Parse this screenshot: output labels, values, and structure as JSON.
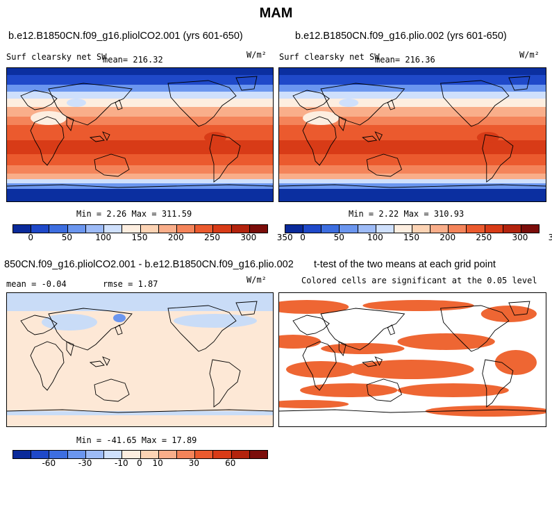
{
  "title": "MAM",
  "panels": {
    "p1": {
      "case": "b.e12.B1850CN.f09_g16.pliolCO2.001 (yrs 601-650)",
      "variable": "Surf clearsky net SW",
      "mean": "mean= 216.32",
      "units": "W/m²",
      "minmax": "Min =   2.26 Max = 311.59"
    },
    "p2": {
      "case": "b.e12.B1850CN.f09_g16.plio.002 (yrs 601-650)",
      "variable": "Surf clearsky net SW",
      "mean": "mean= 216.36",
      "units": "W/m²",
      "minmax": "Min =   2.22 Max = 310.93"
    },
    "p3": {
      "case": "850CN.f09_g16.pliolCO2.001 - b.e12.B1850CN.f09_g16.plio.002",
      "mean": "mean =  -0.04",
      "rmse": "rmse =   1.87",
      "units": "W/m²",
      "minmax": "Min = -41.65 Max =  17.89"
    },
    "p4": {
      "title": "t-test of the two means at each grid point",
      "subtitle": "Colored cells are significant at the 0.05 level"
    }
  },
  "colorbars": {
    "abs": {
      "colors": [
        "#0a2a9a",
        "#1f49c9",
        "#3d6ee0",
        "#6b96ef",
        "#9dbbf7",
        "#cfe0fc",
        "#fdeee0",
        "#fcd3b4",
        "#f9ae8a",
        "#f4845a",
        "#eb5a2e",
        "#d83b17",
        "#b3230d",
        "#7b0d0a"
      ],
      "tick_labels": [
        "0",
        "50",
        "100",
        "150",
        "200",
        "250",
        "300",
        "350"
      ]
    },
    "diff": {
      "colors": [
        "#0a2a9a",
        "#1f49c9",
        "#3d6ee0",
        "#6b96ef",
        "#9dbbf7",
        "#cfe0fc",
        "#fdeee0",
        "#fcd3b4",
        "#f9ae8a",
        "#f4845a",
        "#eb5a2e",
        "#d83b17",
        "#b3230d",
        "#7b0d0a"
      ],
      "tick_labels": [
        "-60",
        "-30",
        "-10",
        "0",
        "10",
        "30",
        "60"
      ]
    }
  },
  "map_colors": {
    "polar": "#0b2fa0",
    "deep_blue": "#1f49c9",
    "mid_blue": "#6b96ef",
    "light_blue": "#cfe0fc",
    "pale": "#fdeee0",
    "peach": "#f9ae8a",
    "orange": "#f4845a",
    "red_orange": "#eb5a2e",
    "dark_orange": "#d83b17",
    "sig": "#ee6633",
    "diff_bg": "#fde8d6",
    "diff_blue": "#c9dcf7"
  }
}
